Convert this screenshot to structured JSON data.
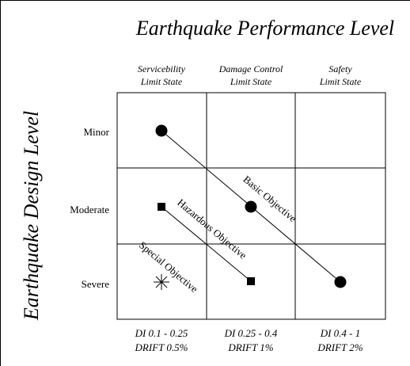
{
  "title": "Earthquake Performance Level",
  "side_title": "Earthquake Design Level",
  "columns": [
    {
      "line1": "Servicebility",
      "line2": "Limit State"
    },
    {
      "line1": "Damage Control",
      "line2": "Limit State"
    },
    {
      "line1": "Safety",
      "line2": "Limit State"
    }
  ],
  "rows": [
    "Minor",
    "Moderate",
    "Severe"
  ],
  "footers": [
    {
      "di": "DI 0.1 - 0.25",
      "drift": "DRIFT 0.5%"
    },
    {
      "di": "DI 0.25 - 0.4",
      "drift": "DRIFT 1%"
    },
    {
      "di": "DI 0.4 - 1",
      "drift": "DRIFT 2%"
    }
  ],
  "objectives": [
    "Basic Objective",
    "Hazardous Objective",
    "Special Objective"
  ]
}
